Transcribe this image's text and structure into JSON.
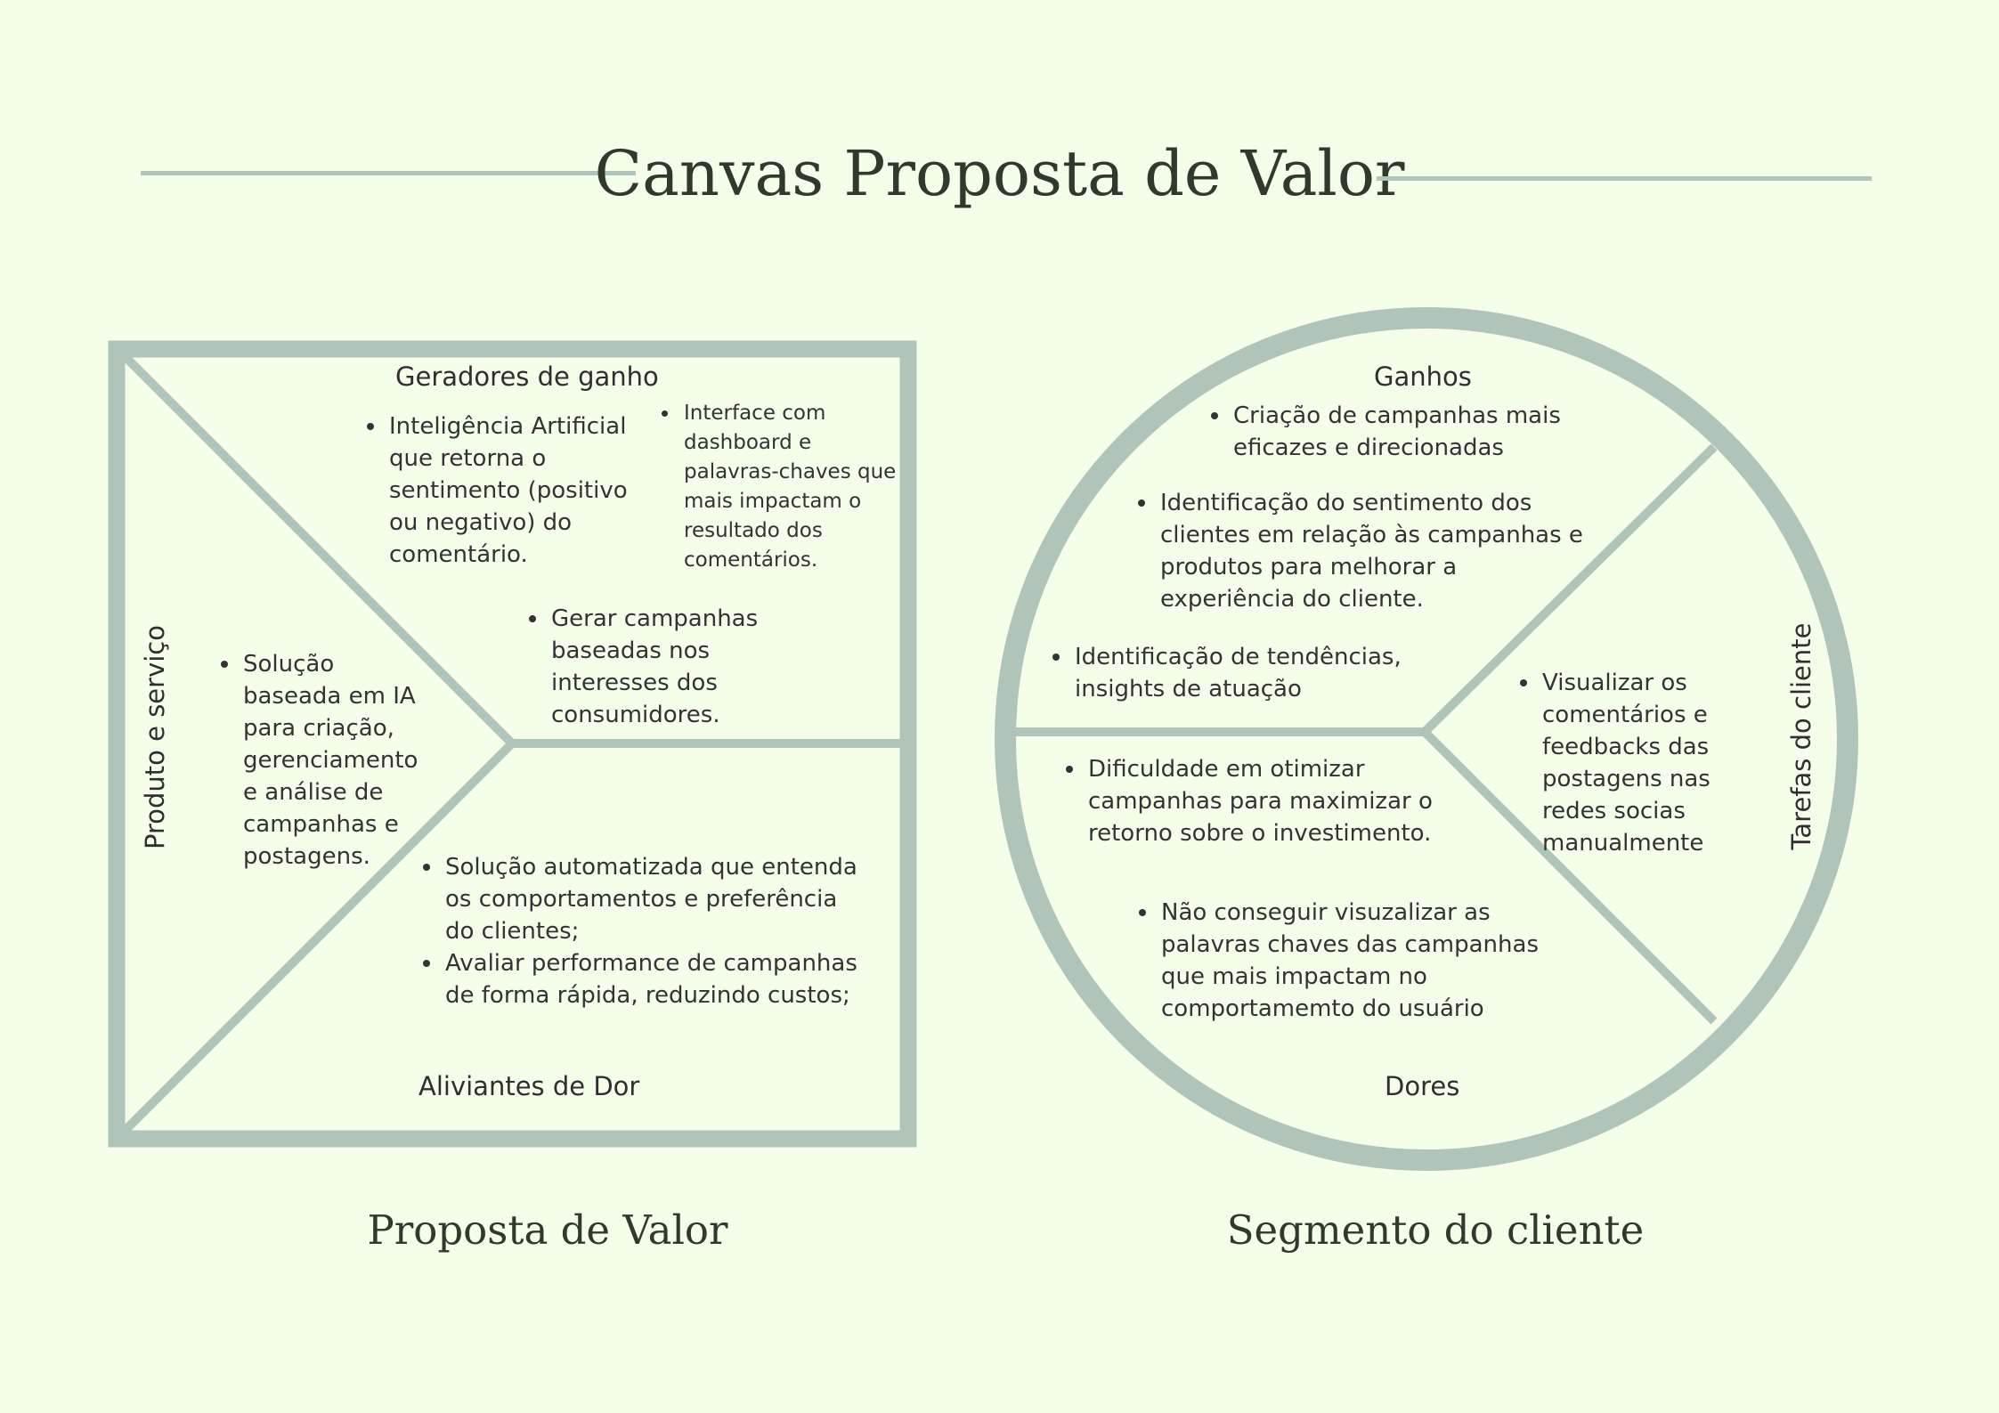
{
  "title": "Canvas Proposta de Valor",
  "value_proposition": {
    "caption": "Proposta de Valor",
    "gain_creators": {
      "heading": "Geradores de ganho",
      "col1": [
        "Inteligência Artificial que retorna o sentimento (positivo ou negativo) do comentário."
      ],
      "col2": [
        "Interface com dashboard e palavras-chaves que mais impactam o resultado dos comentários."
      ],
      "center": [
        "Gerar campanhas baseadas nos interesses dos consumidores."
      ]
    },
    "products_services": {
      "heading": "Produto e serviço",
      "items": [
        "Solução baseada em IA para criação, gerenciamento e análise de campanhas e postagens."
      ]
    },
    "pain_relievers": {
      "heading": "Aliviantes de Dor",
      "items": [
        "Solução automatizada que entenda os comportamentos e preferência do clientes;",
        "Avaliar performance de campanhas de forma rápida, reduzindo custos;"
      ]
    }
  },
  "customer_segment": {
    "caption": "Segmento do cliente",
    "gains": {
      "heading": "Ganhos",
      "items": [
        "Criação de campanhas mais eficazes e direcionadas",
        "Identificação do sentimento dos clientes em relação às campanhas e produtos para melhorar a experiência do cliente.",
        "Identificação de tendências, insights de atuação"
      ]
    },
    "customer_jobs": {
      "heading": "Tarefas do cliente",
      "items": [
        "Visualizar os comentários e feedbacks  das postagens nas redes socias manualmente"
      ]
    },
    "pains": {
      "heading": "Dores",
      "items": [
        "Dificuldade em otimizar campanhas para maximizar o retorno sobre o investimento.",
        "Não conseguir visuzalizar as palavras chaves das campanhas que mais impactam no comportamemto do usuário"
      ]
    }
  }
}
